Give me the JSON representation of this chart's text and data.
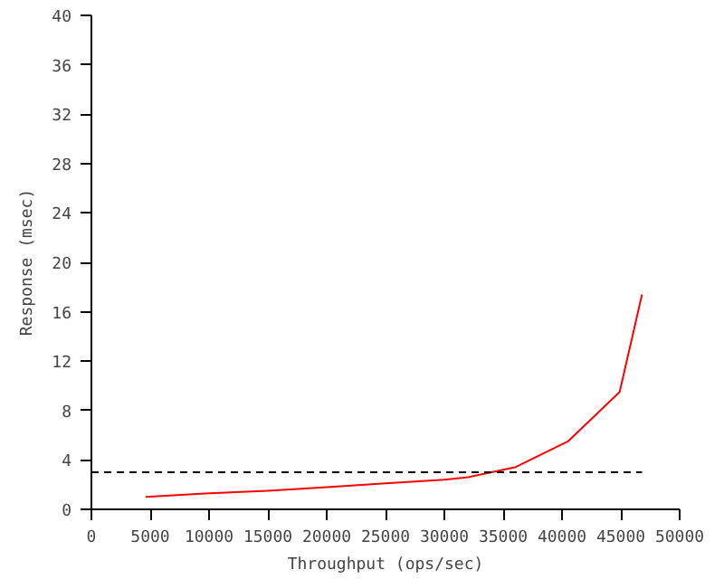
{
  "chart_data": {
    "type": "line",
    "xlabel": "Throughput (ops/sec)",
    "ylabel": "Response (msec)",
    "xlim": [
      0,
      50000
    ],
    "xticks": [
      0,
      5000,
      10000,
      15000,
      20000,
      25000,
      30000,
      35000,
      40000,
      45000,
      50000
    ],
    "ylim": [
      0,
      40
    ],
    "yticks": [
      0,
      4,
      8,
      12,
      16,
      20,
      24,
      28,
      32,
      36,
      40
    ],
    "grid": false,
    "series": [
      {
        "color": "#ff0000",
        "line_style": "solid",
        "x": [
          4600,
          10000,
          15000,
          20000,
          25000,
          30000,
          32000,
          36000,
          40500,
          44900,
          46800
        ],
        "values": [
          1.0,
          1.3,
          1.5,
          1.8,
          2.1,
          2.4,
          2.6,
          3.4,
          5.5,
          9.5,
          17.4
        ]
      },
      {
        "color": "#000000",
        "line_style": "dashed",
        "x": [
          0,
          46800
        ],
        "values": [
          3.0,
          3.0
        ]
      }
    ]
  }
}
